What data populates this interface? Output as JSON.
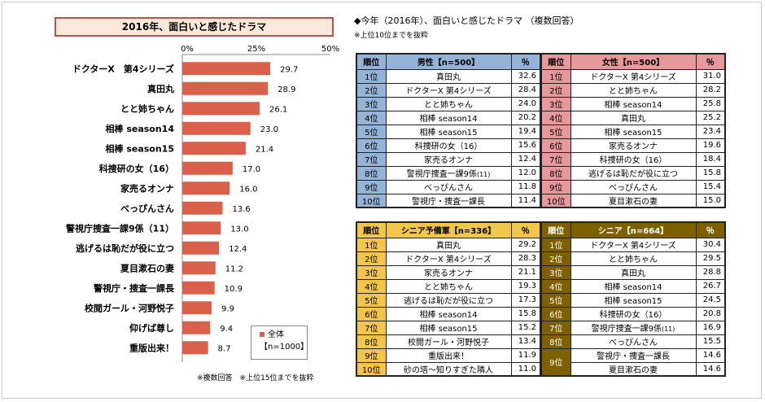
{
  "chart_data": {
    "type": "bar",
    "orientation": "horizontal",
    "title": "2016年、面白いと感じたドラマ",
    "categories": [
      "ドクターX　第4シリーズ",
      "真田丸",
      "とと姉ちゃん",
      "相棒 season14",
      "相棒 season15",
      "科捜研の女（16）",
      "家売るオンナ",
      "べっぴんさん",
      "警視庁捜査一課9係（11）",
      "逃げるは恥だが役に立つ",
      "夏目漱石の妻",
      "警視庁・捜査一課長",
      "校閲ガール・河野悦子",
      "仰げば尊し",
      "重版出来！"
    ],
    "series": [
      {
        "name": "全体",
        "values": [
          29.7,
          28.9,
          26.1,
          23.0,
          21.4,
          17.0,
          16.0,
          13.6,
          13.0,
          12.4,
          11.2,
          10.9,
          9.9,
          9.4,
          8.7
        ]
      }
    ],
    "value_labels": [
      "29.7",
      "28.9",
      "26.1",
      "23.0",
      "21.4",
      "17.0",
      "16.0",
      "13.6",
      "13.0",
      "12.4",
      "11.2",
      "10.9",
      "9.9",
      "9.4",
      "8.7"
    ],
    "xlim": [
      0,
      50
    ],
    "ticks": [
      "0%",
      "25%",
      "50%"
    ],
    "bar_color": "#d9604b",
    "legend": {
      "label": "全体",
      "n": "【n=1000】",
      "placement": "bottom-right"
    }
  },
  "footnote_left": "※複数回答　※上位15位までを抜粋",
  "right_title": "◆今年（2016年）、面白いと感じたドラマ （複数回答）",
  "right_subtitle": "※上位10位までを抜粋",
  "tables": {
    "male": {
      "header": [
        "順位",
        "男性【n=500】",
        "％"
      ],
      "color": "#95b3d7",
      "rows": [
        [
          "1位",
          "真田丸",
          "32.6"
        ],
        [
          "2位",
          "ドクターX 第4シリーズ",
          "28.4"
        ],
        [
          "3位",
          "とと姉ちゃん",
          "24.0"
        ],
        [
          "4位",
          "相棒 season14",
          "20.2"
        ],
        [
          "5位",
          "相棒 season15",
          "19.4"
        ],
        [
          "6位",
          "科捜研の女（16）",
          "15.6"
        ],
        [
          "7位",
          "家売るオンナ",
          "12.4"
        ],
        [
          "8位",
          "警視庁捜査一課9係",
          "12.0"
        ],
        [
          "9位",
          "べっぴんさん",
          "11.8"
        ],
        [
          "10位",
          "警視庁・捜査一課長",
          "11.4"
        ]
      ],
      "row8_suffix": "(11)"
    },
    "female": {
      "header": [
        "順位",
        "女性【n=500】",
        "％"
      ],
      "color": "#e6989a",
      "rows": [
        [
          "1位",
          "ドクターX 第4シリーズ",
          "31.0"
        ],
        [
          "2位",
          "とと姉ちゃん",
          "28.2"
        ],
        [
          "3位",
          "相棒 season14",
          "25.8"
        ],
        [
          "4位",
          "真田丸",
          "25.2"
        ],
        [
          "5位",
          "相棒 season15",
          "23.4"
        ],
        [
          "6位",
          "家売るオンナ",
          "19.6"
        ],
        [
          "7位",
          "科捜研の女（16）",
          "18.4"
        ],
        [
          "8位",
          "逃げるは恥だが役に立つ",
          "15.8"
        ],
        [
          "9位",
          "べっぴんさん",
          "15.4"
        ],
        [
          "10位",
          "夏目漱石の妻",
          "15.0"
        ]
      ]
    },
    "senior_pre": {
      "header": [
        "順位",
        "シニア予備軍【n=336】",
        "％"
      ],
      "color": "#f3c54b",
      "rows": [
        [
          "1位",
          "真田丸",
          "29.2"
        ],
        [
          "2位",
          "ドクターX 第4シリーズ",
          "28.3"
        ],
        [
          "3位",
          "家売るオンナ",
          "21.1"
        ],
        [
          "4位",
          "とと姉ちゃん",
          "19.3"
        ],
        [
          "5位",
          "逃げるは恥だが役に立つ",
          "17.3"
        ],
        [
          "6位",
          "相棒 season14",
          "15.8"
        ],
        [
          "7位",
          "相棒 season15",
          "15.2"
        ],
        [
          "8位",
          "校閲ガール・河野悦子",
          "13.4"
        ],
        [
          "9位",
          "重版出来！",
          "11.9"
        ],
        [
          "10位",
          "砂の塔～知りすぎた隣人",
          "11.0"
        ]
      ]
    },
    "senior": {
      "header": [
        "順位",
        "シニア【n=664】",
        "％"
      ],
      "color": "#7f6000",
      "rows": [
        [
          "1位",
          "ドクターX 第4シリーズ",
          "30.4"
        ],
        [
          "2位",
          "とと姉ちゃん",
          "29.5"
        ],
        [
          "3位",
          "真田丸",
          "28.8"
        ],
        [
          "4位",
          "相棒 season14",
          "26.7"
        ],
        [
          "5位",
          "相棒 season15",
          "24.5"
        ],
        [
          "6位",
          "科捜研の女（16）",
          "20.8"
        ],
        [
          "7位",
          "警視庁捜査一課9係",
          "16.9"
        ],
        [
          "8位",
          "べっぴんさん",
          "15.5"
        ],
        [
          "9位",
          "警視庁・捜査一課長",
          "14.6"
        ],
        [
          "9位",
          "夏目漱石の妻",
          "14.6"
        ]
      ],
      "row7_suffix": "(11)"
    }
  }
}
